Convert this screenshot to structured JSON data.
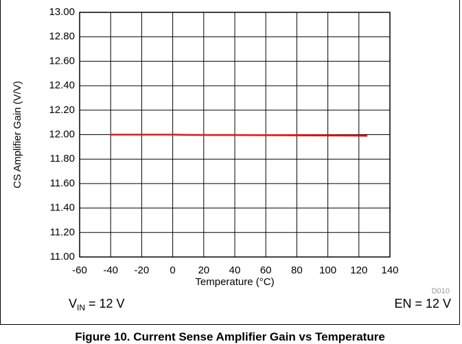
{
  "chart_data": {
    "type": "line",
    "xlabel": "Temperature (°C)",
    "ylabel": "CS Amplifier Gain (V/V)",
    "xlim": [
      -60,
      140
    ],
    "ylim": [
      11.0,
      13.0
    ],
    "x_ticks": [
      -60,
      -40,
      -20,
      0,
      20,
      40,
      60,
      80,
      100,
      120,
      140
    ],
    "y_ticks": [
      11.0,
      11.2,
      11.4,
      11.6,
      11.8,
      12.0,
      12.2,
      12.4,
      12.6,
      12.8,
      13.0
    ],
    "grid": true,
    "series": [
      {
        "color": "#e8120c",
        "x": [
          -40,
          -25,
          -10,
          0,
          10,
          25,
          40,
          55,
          70,
          85,
          100,
          115,
          125
        ],
        "y": [
          12.0,
          12.0,
          12.0,
          12.0,
          11.998,
          11.997,
          11.997,
          11.996,
          11.995,
          11.994,
          11.993,
          11.992,
          11.99
        ]
      }
    ],
    "code": "D010"
  },
  "conditions": {
    "vin_main": "V",
    "vin_sub": "IN",
    "vin_value": " = 12 V",
    "en": "EN = 12 V"
  },
  "caption": "Figure 10. Current Sense Amplifier Gain vs Temperature"
}
